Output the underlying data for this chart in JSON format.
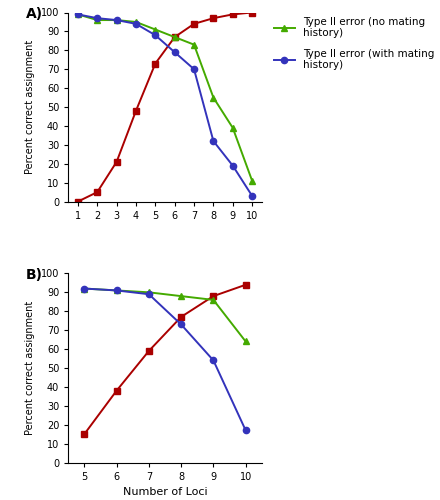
{
  "panel_A": {
    "x": [
      1,
      2,
      3,
      4,
      5,
      6,
      7,
      8,
      9,
      10
    ],
    "red": [
      0,
      5,
      21,
      48,
      73,
      87,
      94,
      97,
      99,
      100
    ],
    "green": [
      99,
      96,
      96,
      95,
      91,
      87,
      83,
      55,
      39,
      11
    ],
    "blue": [
      99,
      97,
      96,
      94,
      88,
      79,
      70,
      32,
      19,
      3
    ],
    "ylabel": "Percent correct assignment",
    "label": "A)"
  },
  "panel_B": {
    "x": [
      5,
      6,
      7,
      8,
      9,
      10
    ],
    "red": [
      15,
      38,
      59,
      77,
      88,
      94
    ],
    "green": [
      92,
      91,
      90,
      88,
      86,
      64
    ],
    "blue": [
      92,
      91,
      89,
      73,
      54,
      17
    ],
    "xlabel": "Number of Loci",
    "ylabel": "Percent correct assignment",
    "label": "B)"
  },
  "legend": {
    "green_label": "Type II error (no mating\nhistory)",
    "blue_label": "Type II error (with mating\nhistory)"
  },
  "colors": {
    "red": "#aa0000",
    "green": "#44aa00",
    "blue": "#3333bb"
  },
  "ylim": [
    0,
    100
  ],
  "yticks": [
    0,
    10,
    20,
    30,
    40,
    50,
    60,
    70,
    80,
    90,
    100
  ]
}
